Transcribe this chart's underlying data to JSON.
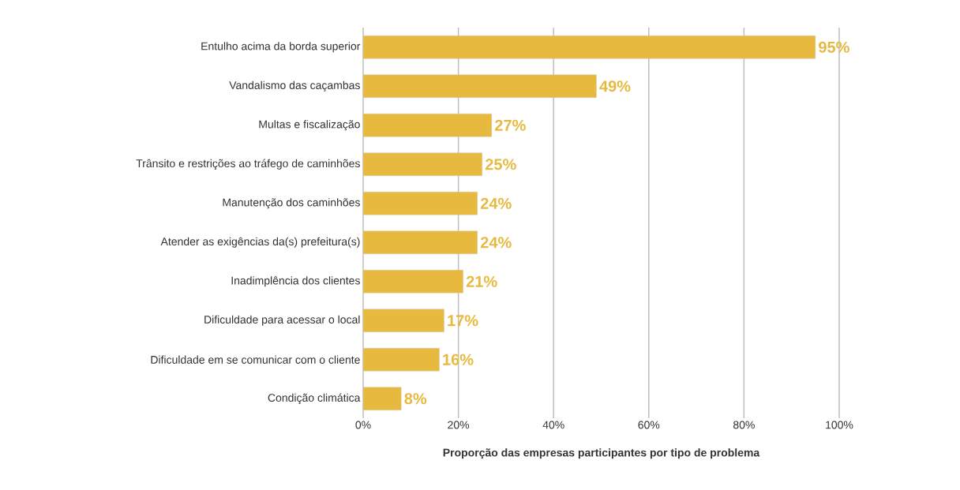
{
  "chart_data": {
    "type": "bar",
    "orientation": "horizontal",
    "xlabel": "Proporção das empresas participantes por tipo de problema",
    "categories": [
      "Entulho acima da borda superior",
      "Vandalismo das caçambas",
      "Multas e fiscalização",
      "Trânsito e restrições ao tráfego de caminhões",
      "Manutenção dos caminhões",
      "Atender as exigências da(s) prefeitura(s)",
      "Inadimplência dos clientes",
      "Dificuldade para acessar o local",
      "Dificuldade em se comunicar com o cliente",
      "Condição climática"
    ],
    "values": [
      95,
      49,
      27,
      25,
      24,
      24,
      21,
      17,
      16,
      8
    ],
    "value_labels": [
      "95%",
      "49%",
      "27%",
      "25%",
      "24%",
      "24%",
      "21%",
      "17%",
      "16%",
      "8%"
    ],
    "color": "#e8b93f",
    "xlim": [
      0,
      100
    ],
    "xticks": [
      {
        "value": 0,
        "label": "0%"
      },
      {
        "value": 20,
        "label": "20%"
      },
      {
        "value": 40,
        "label": "40%"
      },
      {
        "value": 60,
        "label": "60%"
      },
      {
        "value": 80,
        "label": "80%"
      },
      {
        "value": 100,
        "label": "100%"
      }
    ],
    "grid": "x"
  }
}
